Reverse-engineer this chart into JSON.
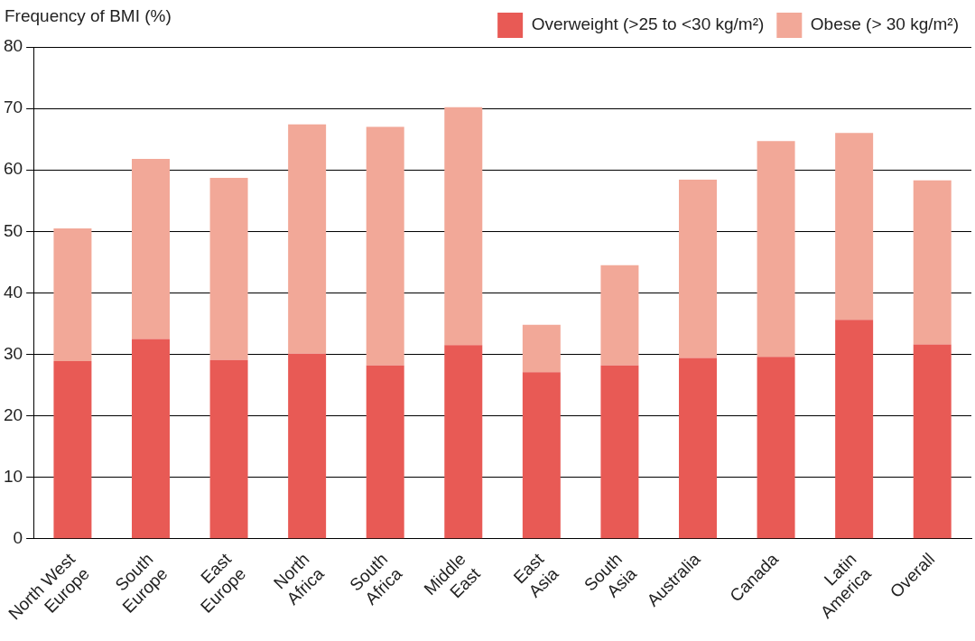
{
  "chart_data": {
    "type": "bar",
    "stacked": true,
    "ylabel": "Frequency of BMI (%)",
    "categories": [
      "North West Europe",
      "South Europe",
      "East Europe",
      "North Africa",
      "South Africa",
      "Middle East",
      "East Asia",
      "South Asia",
      "Australia",
      "Canada",
      "Latin America",
      "Overall"
    ],
    "series": [
      {
        "name": "Overweight (>25 to <30 kg/m²)",
        "color": "#e85a55",
        "values": [
          28.9,
          32.5,
          29.1,
          30.1,
          28.2,
          31.5,
          27.1,
          28.2,
          29.4,
          29.6,
          35.6,
          31.6
        ]
      },
      {
        "name": "Obese (> 30 kg/m²)",
        "color": "#f2a898",
        "values": [
          21.6,
          29.3,
          29.6,
          37.3,
          38.8,
          38.7,
          7.7,
          16.3,
          29.0,
          35.1,
          30.4,
          26.7
        ]
      }
    ],
    "ylim": [
      0,
      80
    ],
    "yticks": [
      0,
      10,
      20,
      30,
      40,
      50,
      60,
      70,
      80
    ],
    "grid": "y",
    "legend": "top right"
  }
}
